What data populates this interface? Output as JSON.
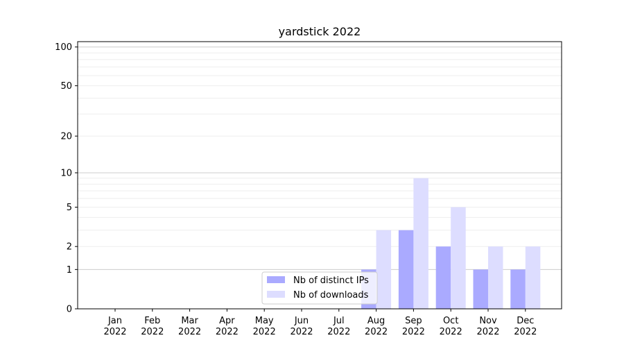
{
  "chart_data": {
    "type": "bar",
    "title": "yardstick 2022",
    "xlabel": "",
    "ylabel": "",
    "yscale": "symlog",
    "ylim": [
      0,
      110
    ],
    "y_ticks": [
      0,
      1,
      2,
      5,
      10,
      20,
      50,
      100
    ],
    "categories": [
      [
        "Jan",
        "2022"
      ],
      [
        "Feb",
        "2022"
      ],
      [
        "Mar",
        "2022"
      ],
      [
        "Apr",
        "2022"
      ],
      [
        "May",
        "2022"
      ],
      [
        "Jun",
        "2022"
      ],
      [
        "Jul",
        "2022"
      ],
      [
        "Aug",
        "2022"
      ],
      [
        "Sep",
        "2022"
      ],
      [
        "Oct",
        "2022"
      ],
      [
        "Nov",
        "2022"
      ],
      [
        "Dec",
        "2022"
      ]
    ],
    "series": [
      {
        "name": "Nb of distinct IPs",
        "color": "#aaaaff",
        "values": [
          0,
          0,
          0,
          0,
          0,
          0,
          0,
          1,
          3,
          2,
          1,
          1
        ]
      },
      {
        "name": "Nb of downloads",
        "color": "#ddddff",
        "values": [
          0,
          0,
          0,
          0,
          0,
          0,
          0,
          3,
          9,
          5,
          2,
          2
        ]
      }
    ],
    "grid": true,
    "legend_position": "lower-center"
  }
}
